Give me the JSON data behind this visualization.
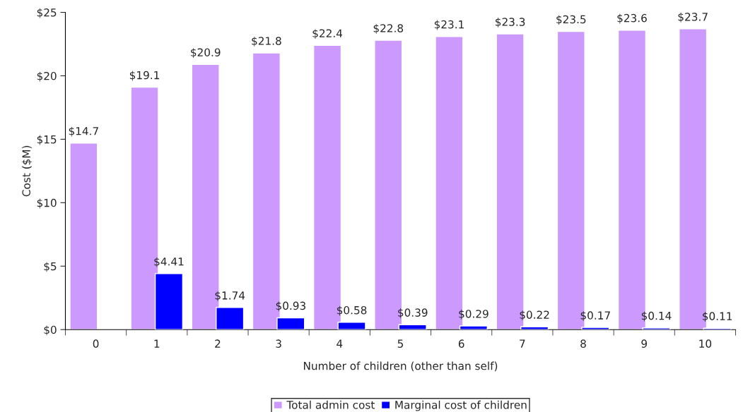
{
  "chart_data": {
    "type": "bar",
    "xlabel": "Number of children (other than self)",
    "ylabel": "Cost ($M)",
    "categories": [
      "0",
      "1",
      "2",
      "3",
      "4",
      "5",
      "6",
      "7",
      "8",
      "9",
      "10"
    ],
    "series": [
      {
        "name": "Total admin cost",
        "color": "#cc99ff",
        "values": [
          14.7,
          19.1,
          20.9,
          21.8,
          22.4,
          22.8,
          23.1,
          23.3,
          23.5,
          23.6,
          23.7
        ],
        "value_labels": [
          "$14.7",
          "$19.1",
          "$20.9",
          "$21.8",
          "$22.4",
          "$22.8",
          "$23.1",
          "$23.3",
          "$23.5",
          "$23.6",
          "$23.7"
        ]
      },
      {
        "name": "Marginal cost of children",
        "color": "#0000ff",
        "values": [
          null,
          4.41,
          1.74,
          0.93,
          0.58,
          0.39,
          0.29,
          0.22,
          0.17,
          0.14,
          0.11
        ],
        "value_labels": [
          null,
          "$4.41",
          "$1.74",
          "$0.93",
          "$0.58",
          "$0.39",
          "$0.29",
          "$0.22",
          "$0.17",
          "$0.14",
          "$0.11"
        ]
      }
    ],
    "ylim": [
      0,
      25
    ],
    "yticks": [
      {
        "value": 0,
        "label": "$0"
      },
      {
        "value": 5,
        "label": "$5"
      },
      {
        "value": 10,
        "label": "$10"
      },
      {
        "value": 15,
        "label": "$15"
      },
      {
        "value": 20,
        "label": "$20"
      },
      {
        "value": 25,
        "label": "$25"
      }
    ],
    "grid": false,
    "legend": "bottom"
  }
}
